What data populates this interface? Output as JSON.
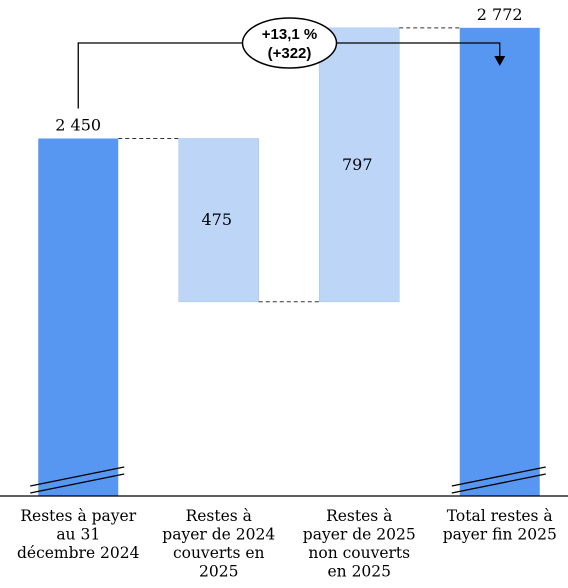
{
  "chart_data": {
    "type": "bar",
    "subtype": "waterfall",
    "categories": [
      [
        "Restes à payer",
        "au 31",
        "décembre 2024"
      ],
      [
        "Restes à",
        "payer de 2024",
        "couverts en",
        "2025"
      ],
      [
        "Restes à",
        "payer de 2025",
        "non couverts",
        "en 2025"
      ],
      [
        "Total restes à",
        "payer fin 2025"
      ]
    ],
    "bars": [
      {
        "kind": "total",
        "start": 0,
        "end": 2450,
        "value_label": "2 450",
        "label_pos": "above"
      },
      {
        "kind": "decrease",
        "start": 1975,
        "end": 2450,
        "value_label": "475",
        "label_pos": "inside"
      },
      {
        "kind": "increase",
        "start": 1975,
        "end": 2772,
        "value_label": "797",
        "label_pos": "inside"
      },
      {
        "kind": "total",
        "start": 0,
        "end": 2772,
        "value_label": "2 772",
        "label_pos": "above"
      }
    ],
    "axis_break": true,
    "variation": {
      "from": 0,
      "to": 3,
      "lines": [
        "+13,1 %",
        "(+322)"
      ]
    },
    "colors": {
      "total": "#5797f2",
      "change": "#bdd6f8",
      "change_edge": "#a9c7ee",
      "line": "#000000"
    }
  }
}
